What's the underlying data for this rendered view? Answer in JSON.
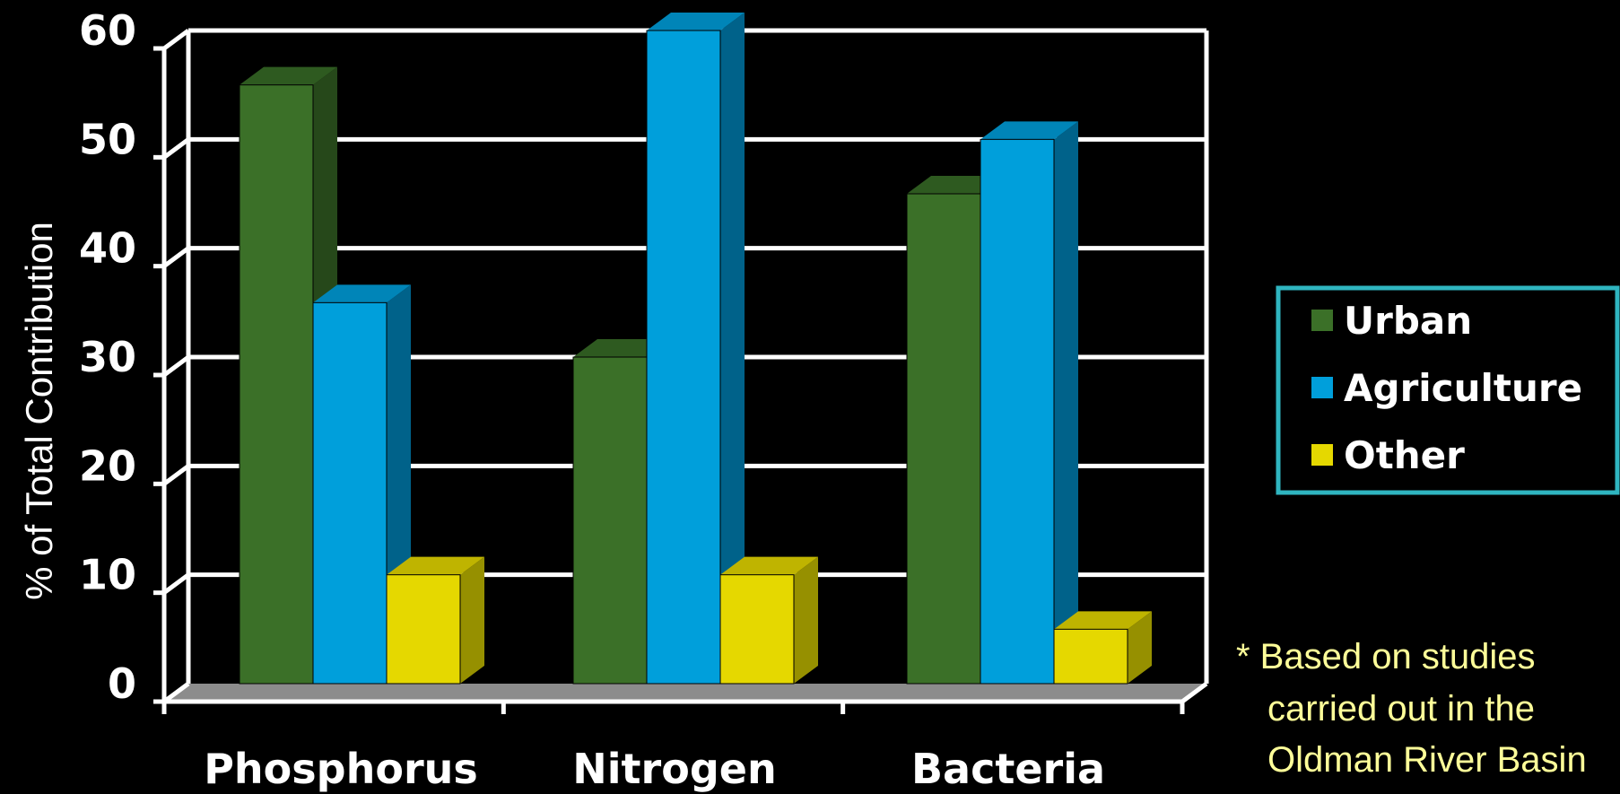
{
  "chart_data": {
    "type": "bar",
    "title": "",
    "xlabel": "",
    "ylabel": "% of Total Contribution",
    "ylim": [
      0,
      60
    ],
    "yticks": [
      0,
      10,
      20,
      30,
      40,
      50,
      60
    ],
    "grid": true,
    "legend_position": "right",
    "categories": [
      "Phosphorus",
      "Nitrogen",
      "Bacteria"
    ],
    "series": [
      {
        "name": "Urban",
        "values": [
          55,
          30,
          45
        ],
        "color": "#3b7028",
        "side_color": "#26481a",
        "top_color": "#2e5a20"
      },
      {
        "name": "Agriculture",
        "values": [
          35,
          60,
          50
        ],
        "color": "#009fdb",
        "side_color": "#00628a",
        "top_color": "#0085b8"
      },
      {
        "name": "Other",
        "values": [
          10,
          10,
          5
        ],
        "color": "#e5d800",
        "side_color": "#969000",
        "top_color": "#bfb400"
      }
    ],
    "legend_border_color": "#2fb5c0",
    "note": {
      "lines": [
        "* Based on studies",
        "carried out in the",
        "Oldman River Basin"
      ]
    }
  }
}
